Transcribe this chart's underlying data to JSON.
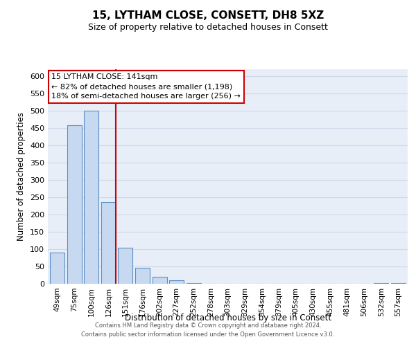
{
  "title": "15, LYTHAM CLOSE, CONSETT, DH8 5XZ",
  "subtitle": "Size of property relative to detached houses in Consett",
  "xlabel": "Distribution of detached houses by size in Consett",
  "ylabel": "Number of detached properties",
  "bar_labels": [
    "49sqm",
    "75sqm",
    "100sqm",
    "126sqm",
    "151sqm",
    "176sqm",
    "202sqm",
    "227sqm",
    "252sqm",
    "278sqm",
    "303sqm",
    "329sqm",
    "354sqm",
    "379sqm",
    "405sqm",
    "430sqm",
    "455sqm",
    "481sqm",
    "506sqm",
    "532sqm",
    "557sqm"
  ],
  "bar_values": [
    90,
    458,
    500,
    237,
    105,
    46,
    20,
    11,
    2,
    0,
    0,
    0,
    0,
    0,
    0,
    0,
    0,
    0,
    0,
    2,
    2
  ],
  "bar_color": "#c6d9f0",
  "bar_edge_color": "#5b8ec4",
  "highlight_line_color": "#cc0000",
  "ylim": [
    0,
    620
  ],
  "yticks": [
    0,
    50,
    100,
    150,
    200,
    250,
    300,
    350,
    400,
    450,
    500,
    550,
    600
  ],
  "annotation_title": "15 LYTHAM CLOSE: 141sqm",
  "annotation_line1": "← 82% of detached houses are smaller (1,198)",
  "annotation_line2": "18% of semi-detached houses are larger (256) →",
  "footer_line1": "Contains HM Land Registry data © Crown copyright and database right 2024.",
  "footer_line2": "Contains public sector information licensed under the Open Government Licence v3.0.",
  "background_color": "#e8eef8",
  "grid_color": "#d0d8e8"
}
